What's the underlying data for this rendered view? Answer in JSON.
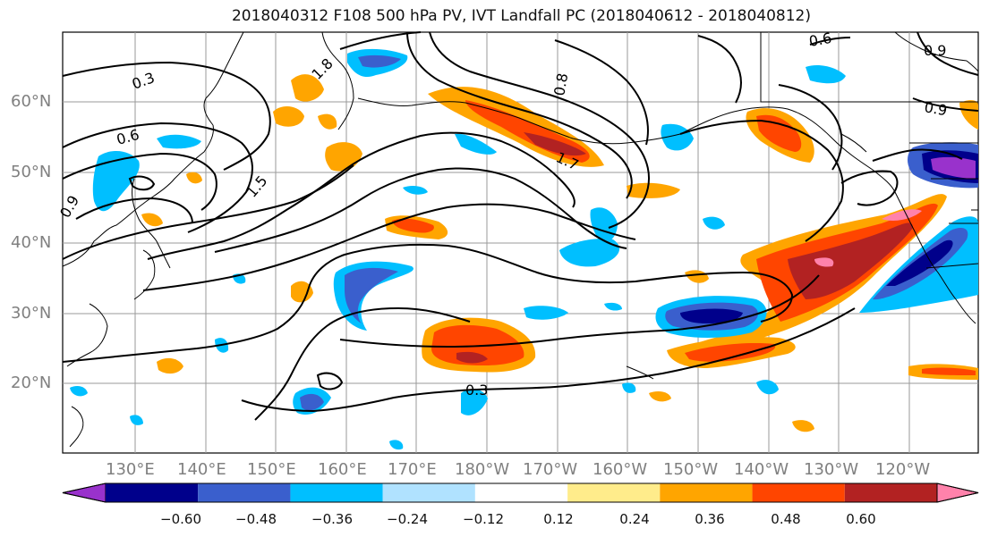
{
  "title": "2018040312 F108 500 hPa PV, IVT Landfall PC (2018040612 - 2018040812)",
  "latitude_labels": [
    "60°N",
    "50°N",
    "40°N",
    "30°N",
    "20°N"
  ],
  "longitude_labels": [
    "130°E",
    "140°E",
    "150°E",
    "160°E",
    "170°E",
    "180°W",
    "170°W",
    "160°W",
    "150°W",
    "140°W",
    "130°W",
    "120°W"
  ],
  "contour_labels": [
    "0.3",
    "0.6",
    "0.9",
    "1.5",
    "1.8",
    "0.8",
    "1.7",
    "0.6",
    "0.9",
    "0.9",
    "0.3"
  ],
  "colorbar": {
    "colors": [
      "#9932cc",
      "#00008b",
      "#3a5fcd",
      "#00bfff",
      "#b0e2ff",
      "#ffffff",
      "#ffec8b",
      "#ffa500",
      "#ff4500",
      "#b22222",
      "#ff82ab"
    ],
    "tick_labels": [
      "−0.60",
      "−0.48",
      "−0.36",
      "−0.24",
      "−0.12",
      "0.12",
      "0.24",
      "0.36",
      "0.48",
      "0.60"
    ]
  }
}
